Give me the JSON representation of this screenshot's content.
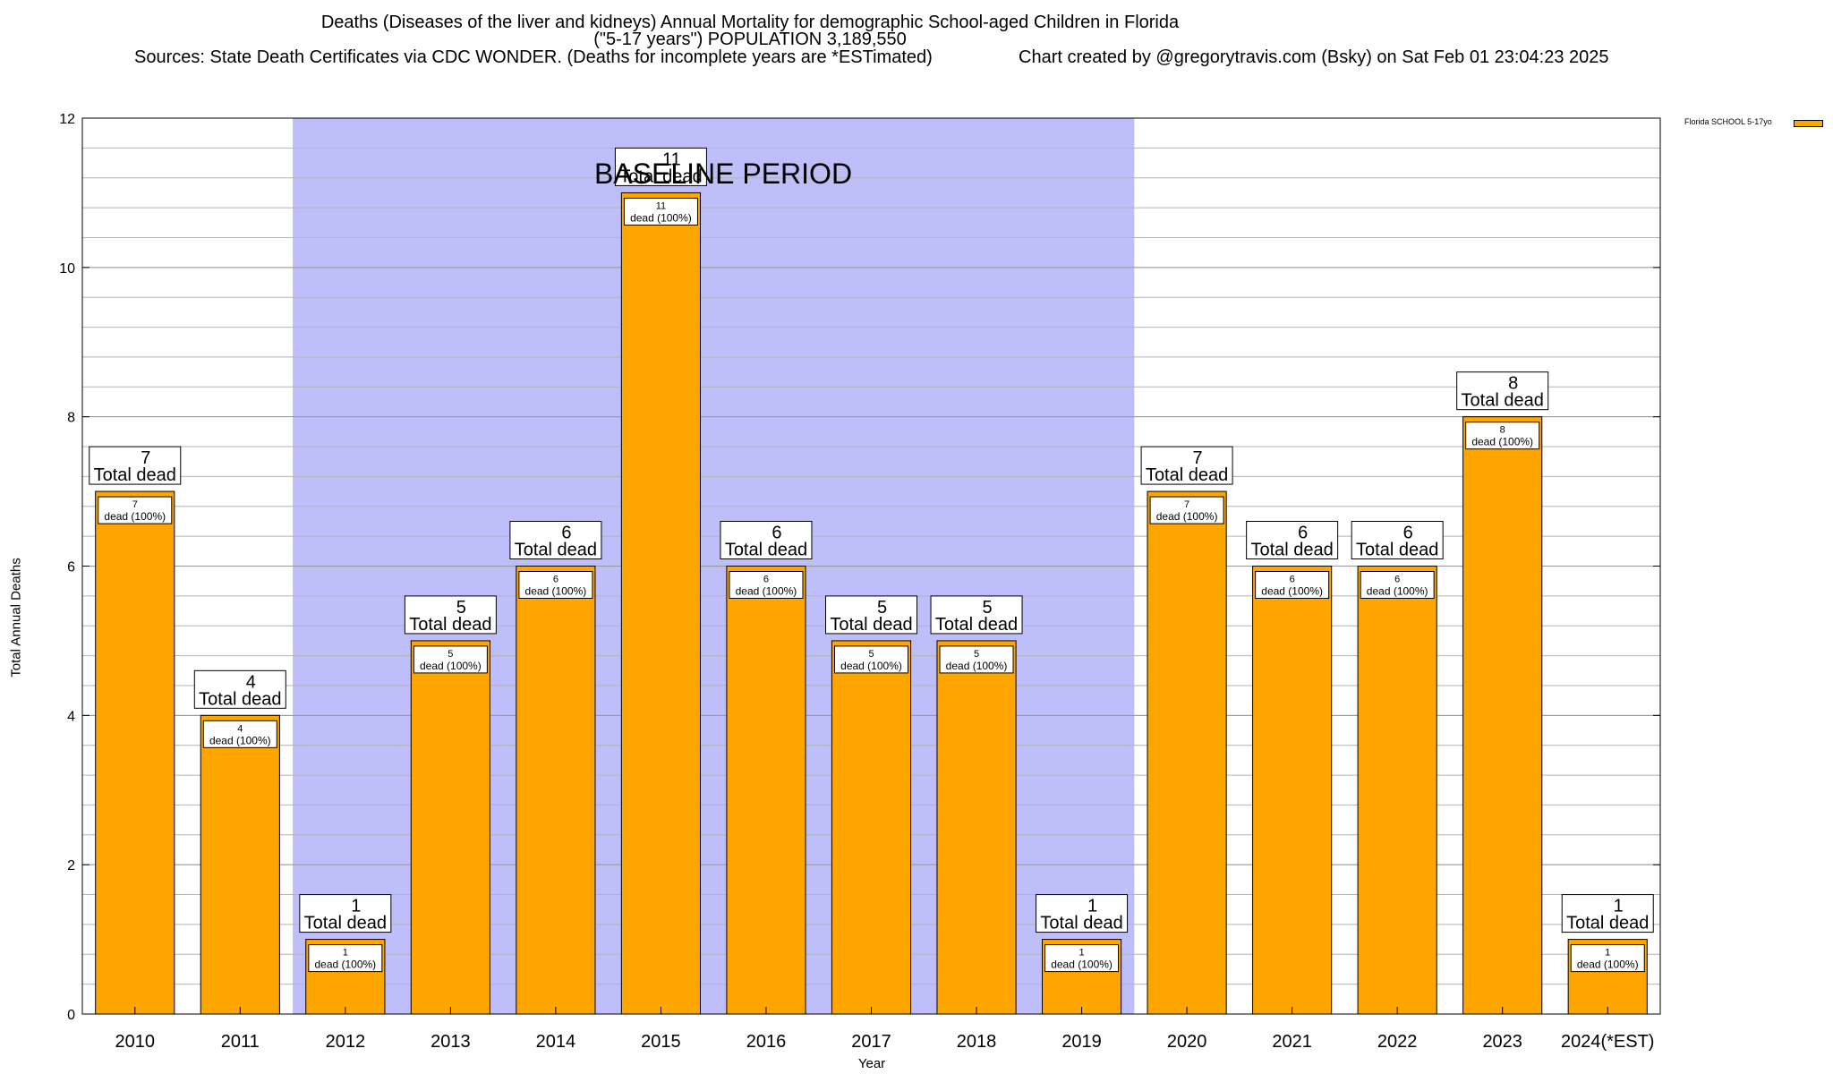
{
  "chart_data": {
    "type": "bar",
    "title": "Deaths (Diseases of the liver and kidneys) Annual Mortality for demographic School-aged Children in Florida",
    "subtitle": "(\"5-17 years\") POPULATION 3,189,550",
    "sources": "Sources: State Death Certificates via CDC WONDER. (Deaths for incomplete years are *ESTimated)",
    "credit": "Chart created by @gregorytravis.com (Bsky) on Sat Feb 01 23:04:23 2025",
    "xlabel": "Year",
    "ylabel": "Total Annual Deaths",
    "ylim": [
      0,
      12
    ],
    "yticks": [
      0,
      2,
      4,
      6,
      8,
      10,
      12
    ],
    "grid": true,
    "legend_position": "top-right",
    "categories": [
      "2010",
      "2011",
      "2012",
      "2013",
      "2014",
      "2015",
      "2016",
      "2017",
      "2018",
      "2019",
      "2020",
      "2021",
      "2022",
      "2023",
      "2024(*EST)"
    ],
    "series": [
      {
        "name": "Florida SCHOOL 5-17yo",
        "color": "#ffa500",
        "values": [
          7,
          4,
          1,
          5,
          6,
          11,
          6,
          5,
          5,
          1,
          7,
          6,
          6,
          8,
          1
        ]
      }
    ],
    "total_label_suffix": "Total dead",
    "inner_label_suffix": "dead (100%)",
    "baseline_period": {
      "label": "BASELINE PERIOD",
      "start": "2012",
      "end": "2019",
      "color": "#bebefa"
    }
  }
}
